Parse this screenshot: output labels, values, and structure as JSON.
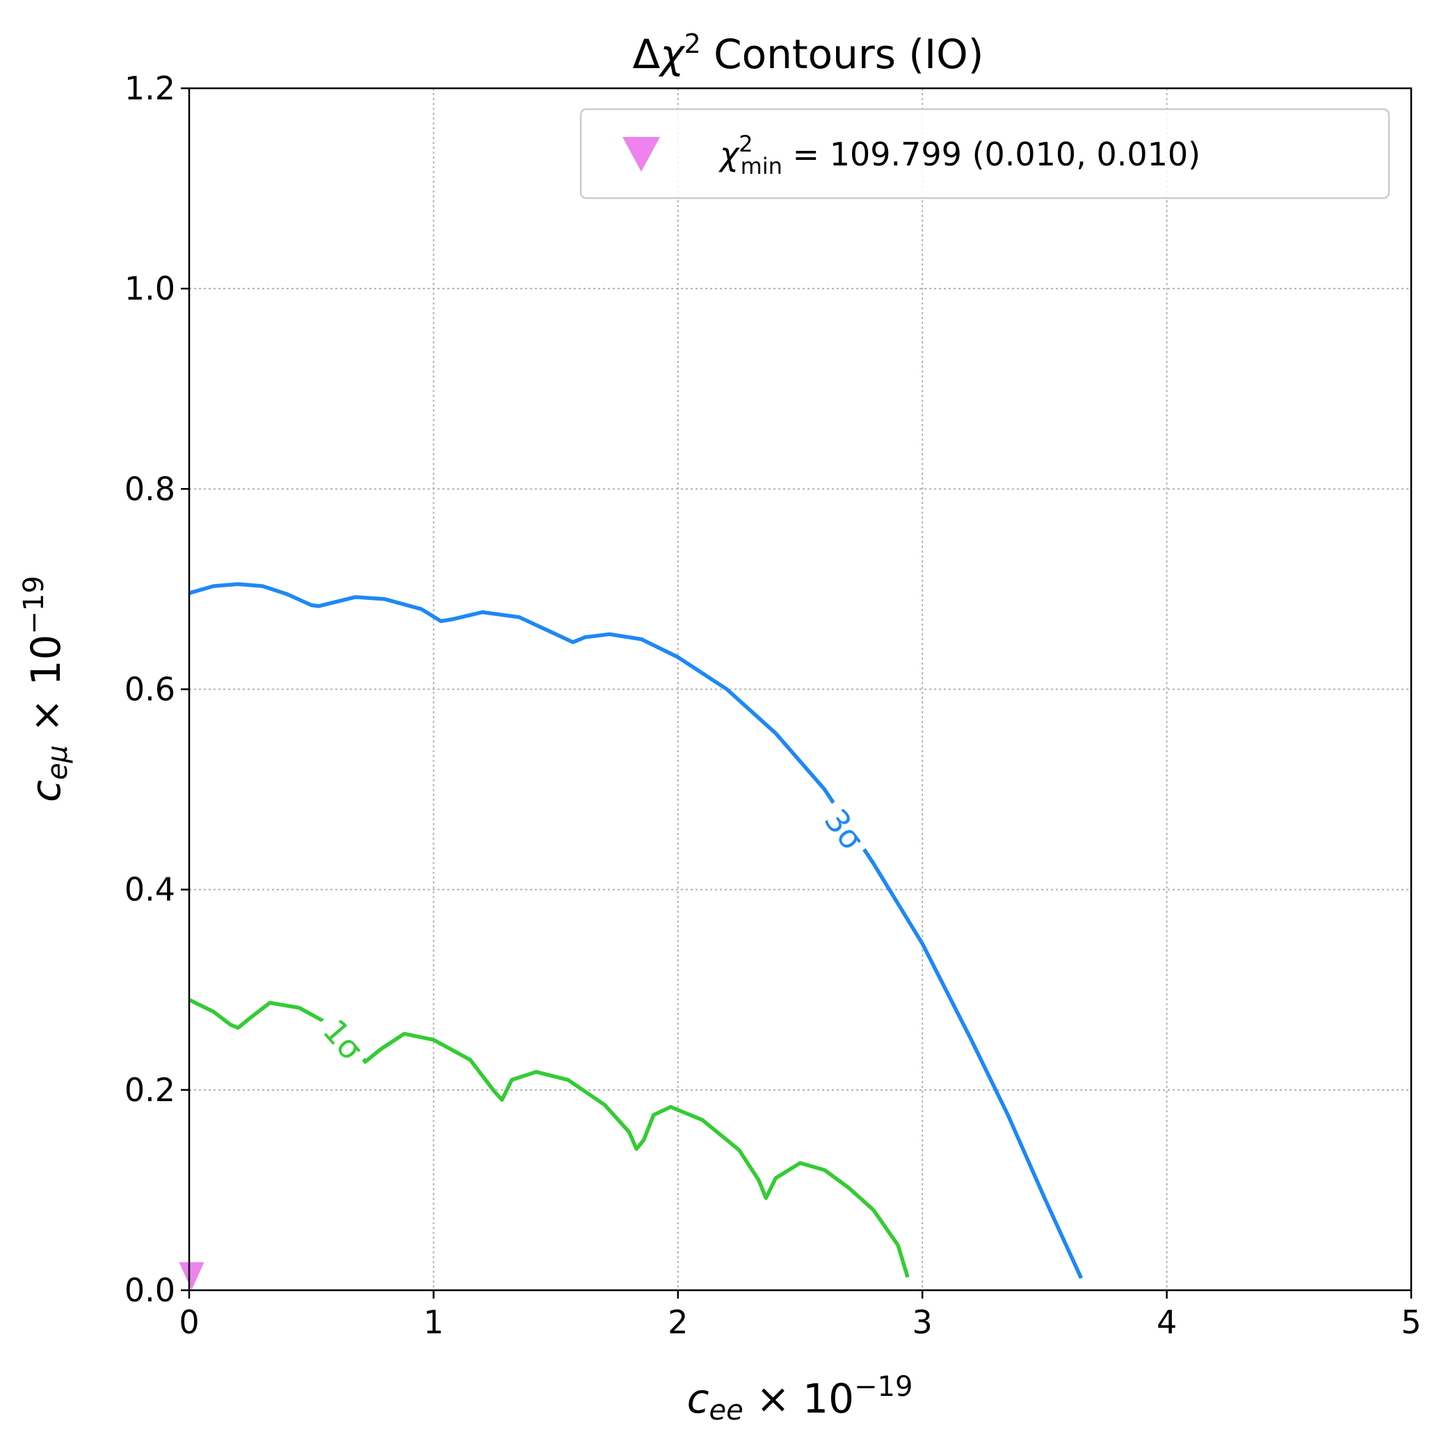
{
  "chart_data": {
    "type": "line",
    "title": {
      "prefix": "Δ",
      "symbol": "χ",
      "sup": "2",
      "suffix": " Contours (IO)"
    },
    "xlabel": {
      "symbol": "c",
      "sub": "ee",
      "mid": " × 10",
      "sup": "−19"
    },
    "ylabel": {
      "symbol": "c",
      "sub": "eμ",
      "mid": " × 10",
      "sup": "−19"
    },
    "xlim": [
      0,
      5
    ],
    "ylim": [
      0,
      1.2
    ],
    "xticks": [
      {
        "value": 0,
        "label": "0"
      },
      {
        "value": 1,
        "label": "1"
      },
      {
        "value": 2,
        "label": "2"
      },
      {
        "value": 3,
        "label": "3"
      },
      {
        "value": 4,
        "label": "4"
      },
      {
        "value": 5,
        "label": "5"
      }
    ],
    "yticks": [
      {
        "value": 0,
        "label": "0.0"
      },
      {
        "value": 0.2,
        "label": "0.2"
      },
      {
        "value": 0.4,
        "label": "0.4"
      },
      {
        "value": 0.6,
        "label": "0.6"
      },
      {
        "value": 0.8,
        "label": "0.8"
      },
      {
        "value": 1.0,
        "label": "1.0"
      },
      {
        "value": 1.2,
        "label": "1.2"
      }
    ],
    "grid": true,
    "legend_position": "top-right",
    "series": [
      {
        "label": "3σ",
        "color": "#1e88f5",
        "label_at": [
          2.68,
          0.46
        ],
        "points": [
          [
            0.0,
            0.696
          ],
          [
            0.1,
            0.703
          ],
          [
            0.2,
            0.705
          ],
          [
            0.3,
            0.703
          ],
          [
            0.4,
            0.695
          ],
          [
            0.5,
            0.684
          ],
          [
            0.53,
            0.683
          ],
          [
            0.58,
            0.686
          ],
          [
            0.68,
            0.692
          ],
          [
            0.8,
            0.69
          ],
          [
            0.95,
            0.68
          ],
          [
            1.03,
            0.668
          ],
          [
            1.08,
            0.67
          ],
          [
            1.2,
            0.677
          ],
          [
            1.35,
            0.672
          ],
          [
            1.5,
            0.655
          ],
          [
            1.57,
            0.647
          ],
          [
            1.62,
            0.652
          ],
          [
            1.72,
            0.655
          ],
          [
            1.85,
            0.65
          ],
          [
            2.0,
            0.632
          ],
          [
            2.2,
            0.6
          ],
          [
            2.4,
            0.556
          ],
          [
            2.6,
            0.5
          ],
          [
            2.8,
            0.426
          ],
          [
            3.0,
            0.346
          ],
          [
            3.2,
            0.25
          ],
          [
            3.35,
            0.175
          ],
          [
            3.5,
            0.092
          ],
          [
            3.65,
            0.012
          ]
        ]
      },
      {
        "label": "1σ",
        "color": "#33cc33",
        "label_at": [
          0.63,
          0.25
        ],
        "points": [
          [
            0.0,
            0.29
          ],
          [
            0.1,
            0.278
          ],
          [
            0.17,
            0.265
          ],
          [
            0.2,
            0.262
          ],
          [
            0.25,
            0.272
          ],
          [
            0.33,
            0.287
          ],
          [
            0.45,
            0.282
          ],
          [
            0.6,
            0.262
          ],
          [
            0.68,
            0.246
          ],
          [
            0.72,
            0.228
          ],
          [
            0.78,
            0.24
          ],
          [
            0.88,
            0.256
          ],
          [
            1.0,
            0.25
          ],
          [
            1.15,
            0.23
          ],
          [
            1.25,
            0.198
          ],
          [
            1.28,
            0.19
          ],
          [
            1.32,
            0.21
          ],
          [
            1.42,
            0.218
          ],
          [
            1.55,
            0.21
          ],
          [
            1.7,
            0.185
          ],
          [
            1.8,
            0.158
          ],
          [
            1.83,
            0.141
          ],
          [
            1.86,
            0.15
          ],
          [
            1.9,
            0.175
          ],
          [
            1.97,
            0.183
          ],
          [
            2.1,
            0.17
          ],
          [
            2.25,
            0.14
          ],
          [
            2.33,
            0.11
          ],
          [
            2.36,
            0.092
          ],
          [
            2.4,
            0.112
          ],
          [
            2.5,
            0.127
          ],
          [
            2.6,
            0.12
          ],
          [
            2.7,
            0.102
          ],
          [
            2.8,
            0.08
          ],
          [
            2.9,
            0.045
          ],
          [
            2.94,
            0.013
          ]
        ]
      }
    ],
    "marker": {
      "x": 0.01,
      "y": 0.01,
      "shape": "triangle-down",
      "color": "#ee82ee"
    },
    "legend": {
      "entries": [
        {
          "symbol": "χ",
          "sup": "2",
          "sub": "min",
          "text": " = 109.799 (0.010, 0.010)"
        }
      ]
    },
    "colors": {
      "grid": "#b0b0b0",
      "axis": "#000000",
      "legend_border": "#cccccc"
    }
  }
}
